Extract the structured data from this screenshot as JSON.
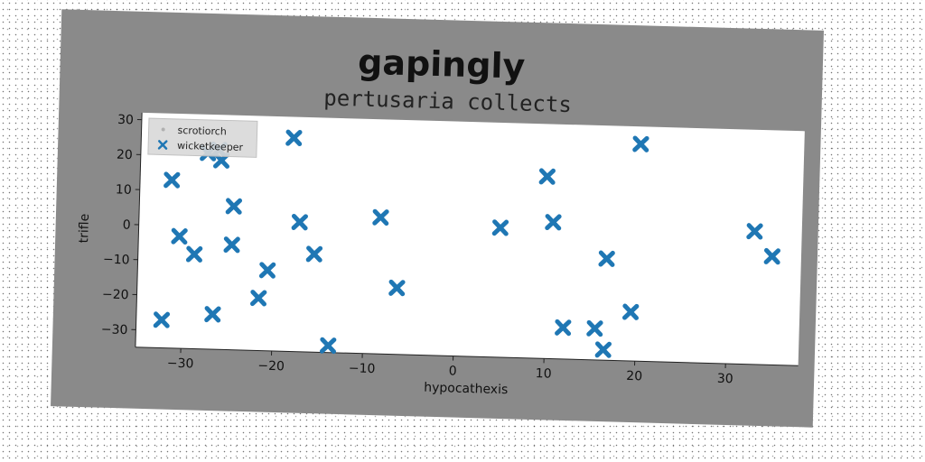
{
  "chart_data": {
    "type": "scatter",
    "title": "gapingly",
    "subtitle": "pertusaria collects",
    "xlabel": "hypocathexis",
    "ylabel": "trifle",
    "xlim": [
      -35,
      38
    ],
    "ylim": [
      -35,
      32
    ],
    "xticks": [
      -30,
      -20,
      -10,
      0,
      10,
      20,
      30
    ],
    "yticks": [
      -30,
      -20,
      -10,
      0,
      10,
      20,
      30
    ],
    "grid": false,
    "legend_position": "top-left",
    "series": [
      {
        "name": "scrotiorch",
        "color": "#b0b0b0",
        "marker": "dot",
        "x": [],
        "y": []
      },
      {
        "name": "wicketkeeper",
        "color": "#1f77b4",
        "marker": "x",
        "x": [
          -31.5,
          -27.6,
          -26.4,
          -26.1,
          -18.2,
          -24.6,
          -17.3,
          -30.5,
          -24.7,
          -28.8,
          -15.6,
          -20.7,
          -8.4,
          -21.6,
          -6.4,
          -26.6,
          -32.2,
          -13.8,
          4.8,
          9.8,
          10.6,
          20.0,
          16.6,
          32.8,
          34.8,
          19.4,
          12.0,
          15.5,
          16.5
        ],
        "y": [
          13,
          21,
          22,
          19,
          26,
          6,
          2,
          -3,
          -5,
          -8,
          -7,
          -12,
          4,
          -20,
          -16,
          -25,
          -27,
          -33,
          2,
          17,
          4,
          27,
          -6,
          3,
          -4,
          -21,
          -26,
          -26,
          -32
        ]
      }
    ]
  }
}
